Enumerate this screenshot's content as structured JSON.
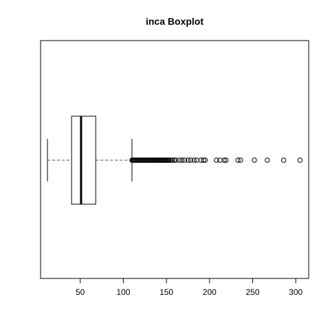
{
  "chart_data": {
    "type": "boxplot",
    "orientation": "horizontal",
    "title": "inca Boxplot",
    "xlabel": "",
    "ylabel": "",
    "xlim": [
      4,
      315
    ],
    "xticks": [
      50,
      100,
      150,
      200,
      250,
      300
    ],
    "xtick_labels": [
      "50",
      "100",
      "150",
      "200",
      "250",
      "300"
    ],
    "grid": false,
    "legend": "none",
    "box": {
      "min": 12,
      "q1": 40,
      "median": 51,
      "q3": 68,
      "max": 110
    },
    "outliers": [
      110,
      111,
      112,
      113,
      114,
      115,
      116,
      117,
      118,
      119,
      120,
      121,
      122,
      123,
      124,
      125,
      126,
      127,
      128,
      129,
      130,
      131,
      132,
      133,
      134,
      135,
      136,
      137,
      138,
      139,
      140,
      141,
      142,
      143,
      144,
      145,
      146,
      147,
      148,
      149,
      150,
      151,
      152,
      153,
      155,
      157,
      159,
      161,
      165,
      168,
      171,
      175,
      178,
      182,
      185,
      190,
      193,
      195,
      208,
      212,
      217,
      219,
      233,
      236,
      252,
      267,
      286,
      305
    ],
    "colors": {
      "stroke": "#000000",
      "whisker": "#444444",
      "background": "#ffffff"
    }
  }
}
